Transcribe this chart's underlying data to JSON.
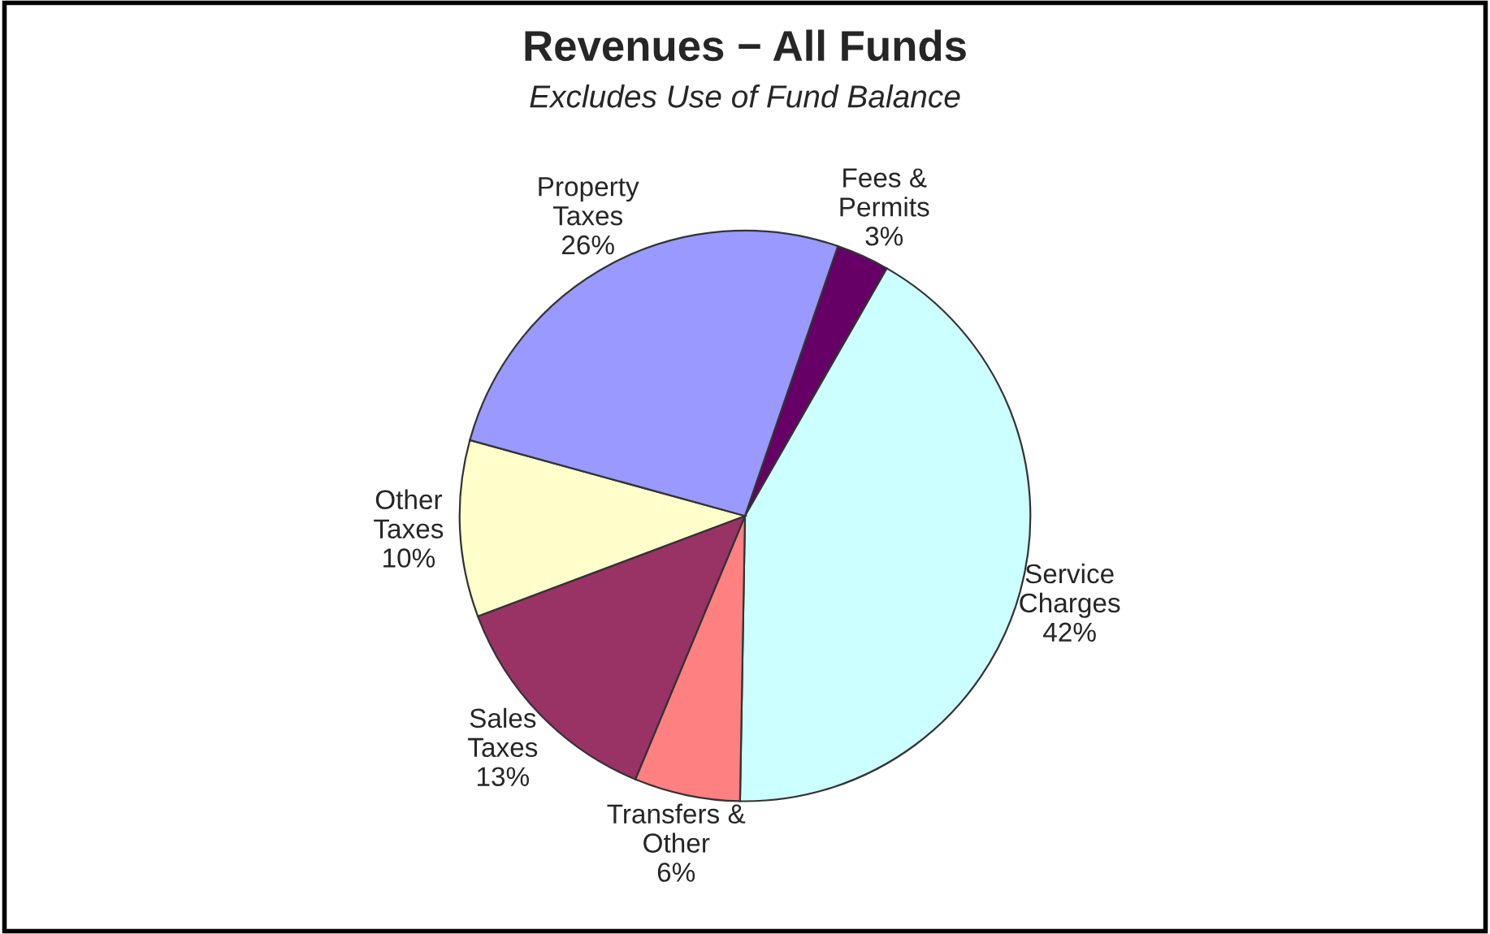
{
  "chart_data": {
    "type": "pie",
    "title": "Revenues − All Funds",
    "subtitle": "Excludes Use of Fund Balance",
    "categories": [
      "Fees &\nPermits",
      "Service\nCharges",
      "Transfers &\nOther",
      "Sales\nTaxes",
      "Other\nTaxes",
      "Property\nTaxes"
    ],
    "values": [
      3,
      42,
      6,
      13,
      10,
      26
    ],
    "colors": [
      "#660066",
      "#ccffff",
      "#ff8080",
      "#993366",
      "#ffffcc",
      "#9999ff"
    ],
    "value_labels": [
      "3%",
      "42%",
      "6%",
      "13%",
      "10%",
      "26%"
    ],
    "legend": false
  }
}
